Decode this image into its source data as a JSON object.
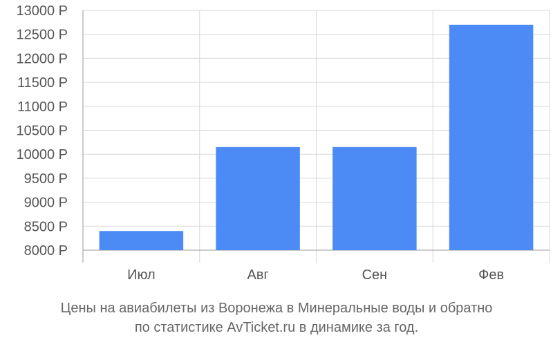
{
  "chart_data": {
    "type": "bar",
    "categories": [
      "Июл",
      "Авг",
      "Сен",
      "Фев"
    ],
    "values": [
      8400,
      10150,
      10150,
      12700
    ],
    "ylim": [
      8000,
      13000
    ],
    "yticks": [
      8000,
      8500,
      9000,
      9500,
      10000,
      10500,
      11000,
      11500,
      12000,
      12500,
      13000
    ],
    "ytick_labels": [
      "8000 Р",
      "8500 Р",
      "9000 Р",
      "9500 Р",
      "10000 Р",
      "10500 Р",
      "11000 Р",
      "11500 Р",
      "12000 Р",
      "12500 Р",
      "13000 Р"
    ],
    "grid": true,
    "bar_color": "#4c8bf5"
  },
  "caption": {
    "line1": "Цены на авиабилеты из Воронежа в Минеральные воды и обратно",
    "line2": "по статистике AvTicket.ru в динамике за год."
  }
}
